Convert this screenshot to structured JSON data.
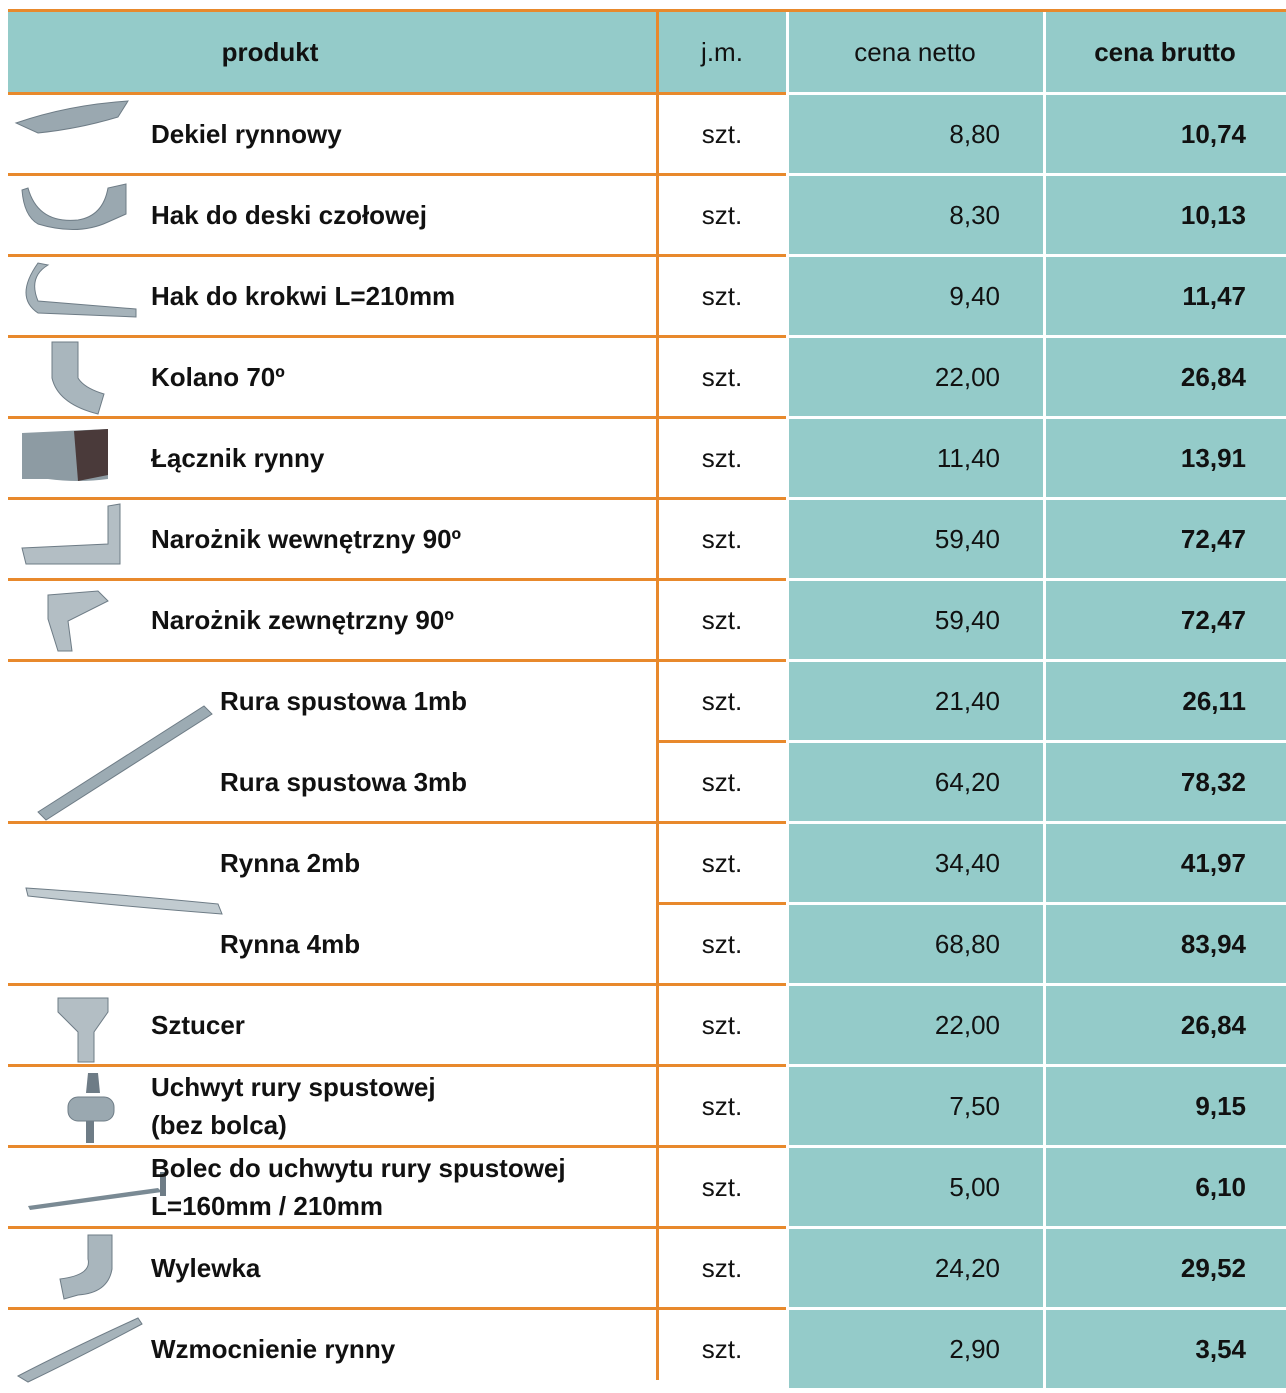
{
  "header": [
    "produkt",
    "j.m.",
    "cena netto",
    "cena brutto"
  ],
  "groups": [
    {
      "items": [
        {
          "product": [
            "Dekiel rynnowy"
          ],
          "unit": "szt.",
          "net": "8,80",
          "gross": "10,74"
        }
      ]
    },
    {
      "items": [
        {
          "product": [
            "Hak do deski czołowej"
          ],
          "unit": "szt.",
          "net": "8,30",
          "gross": "10,13"
        }
      ]
    },
    {
      "items": [
        {
          "product": [
            "Hak do krokwi L=210mm"
          ],
          "unit": "szt.",
          "net": "9,40",
          "gross": "11,47"
        }
      ]
    },
    {
      "items": [
        {
          "product": [
            "Kolano 70º"
          ],
          "unit": "szt.",
          "net": "22,00",
          "gross": "26,84"
        }
      ]
    },
    {
      "items": [
        {
          "product": [
            "Łącznik rynny"
          ],
          "unit": "szt.",
          "net": "11,40",
          "gross": "13,91"
        }
      ]
    },
    {
      "items": [
        {
          "product": [
            "Narożnik wewnętrzny 90º"
          ],
          "unit": "szt.",
          "net": "59,40",
          "gross": "72,47"
        }
      ]
    },
    {
      "items": [
        {
          "product": [
            "Narożnik zewnętrzny 90º"
          ],
          "unit": "szt.",
          "net": "59,40",
          "gross": "72,47"
        }
      ]
    },
    {
      "items": [
        {
          "product": [
            "Rura spustowa 1mb"
          ],
          "unit": "szt.",
          "net": "21,40",
          "gross": "26,11"
        },
        {
          "product": [
            "Rura spustowa 3mb"
          ],
          "unit": "szt.",
          "net": "64,20",
          "gross": "78,32"
        }
      ]
    },
    {
      "items": [
        {
          "product": [
            "Rynna 2mb"
          ],
          "unit": "szt.",
          "net": "34,40",
          "gross": "41,97"
        },
        {
          "product": [
            "Rynna 4mb"
          ],
          "unit": "szt.",
          "net": "68,80",
          "gross": "83,94"
        }
      ]
    },
    {
      "items": [
        {
          "product": [
            "Sztucer"
          ],
          "unit": "szt.",
          "net": "22,00",
          "gross": "26,84"
        }
      ]
    },
    {
      "items": [
        {
          "product": [
            "Uchwyt rury spustowej",
            "(bez bolca)"
          ],
          "unit": "szt.",
          "net": "7,50",
          "gross": "9,15"
        }
      ]
    },
    {
      "items": [
        {
          "product": [
            "Bolec do uchwytu rury spustowej",
            "L=160mm / 210mm"
          ],
          "unit": "szt.",
          "net": "5,00",
          "gross": "6,10"
        }
      ]
    },
    {
      "items": [
        {
          "product": [
            "Wylewka"
          ],
          "unit": "szt.",
          "net": "24,20",
          "gross": "29,52"
        }
      ]
    },
    {
      "items": [
        {
          "product": [
            "Wzmocnienie rynny"
          ],
          "unit": "szt.",
          "net": "2,90",
          "gross": "3,54"
        }
      ]
    }
  ]
}
